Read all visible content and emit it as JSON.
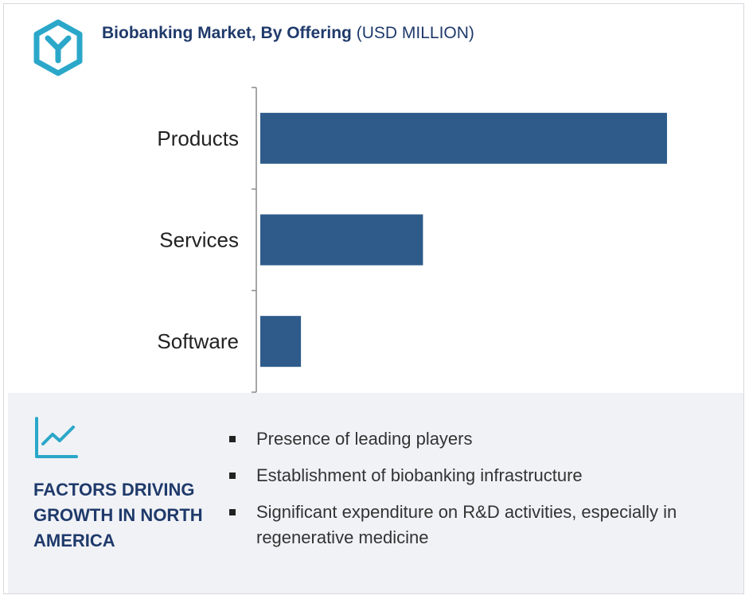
{
  "header": {
    "title_bold": "Biobanking Market, By Offering",
    "title_unit": "(USD MILLION)",
    "logo_icon": "hexagon-y-logo-icon",
    "accent_color": "#2aa7c9",
    "title_color": "#1f3a6b"
  },
  "chart_data": {
    "type": "bar",
    "orientation": "horizontal",
    "title": "Biobanking Market, By Offering",
    "unit": "USD MILLION",
    "categories": [
      "Products",
      "Services",
      "Software"
    ],
    "values": [
      100,
      40,
      10
    ],
    "value_axis_labels": "none",
    "grid": false,
    "legend": "none",
    "bar_color": "#2e5b8a"
  },
  "panel": {
    "icon": "line-chart-icon",
    "heading": "FACTORS DRIVING GROWTH IN NORTH AMERICA",
    "bullets": [
      "Presence of leading players",
      "Establishment of biobanking infrastructure",
      "Significant expenditure on R&D activities, especially in regenerative medicine"
    ]
  }
}
